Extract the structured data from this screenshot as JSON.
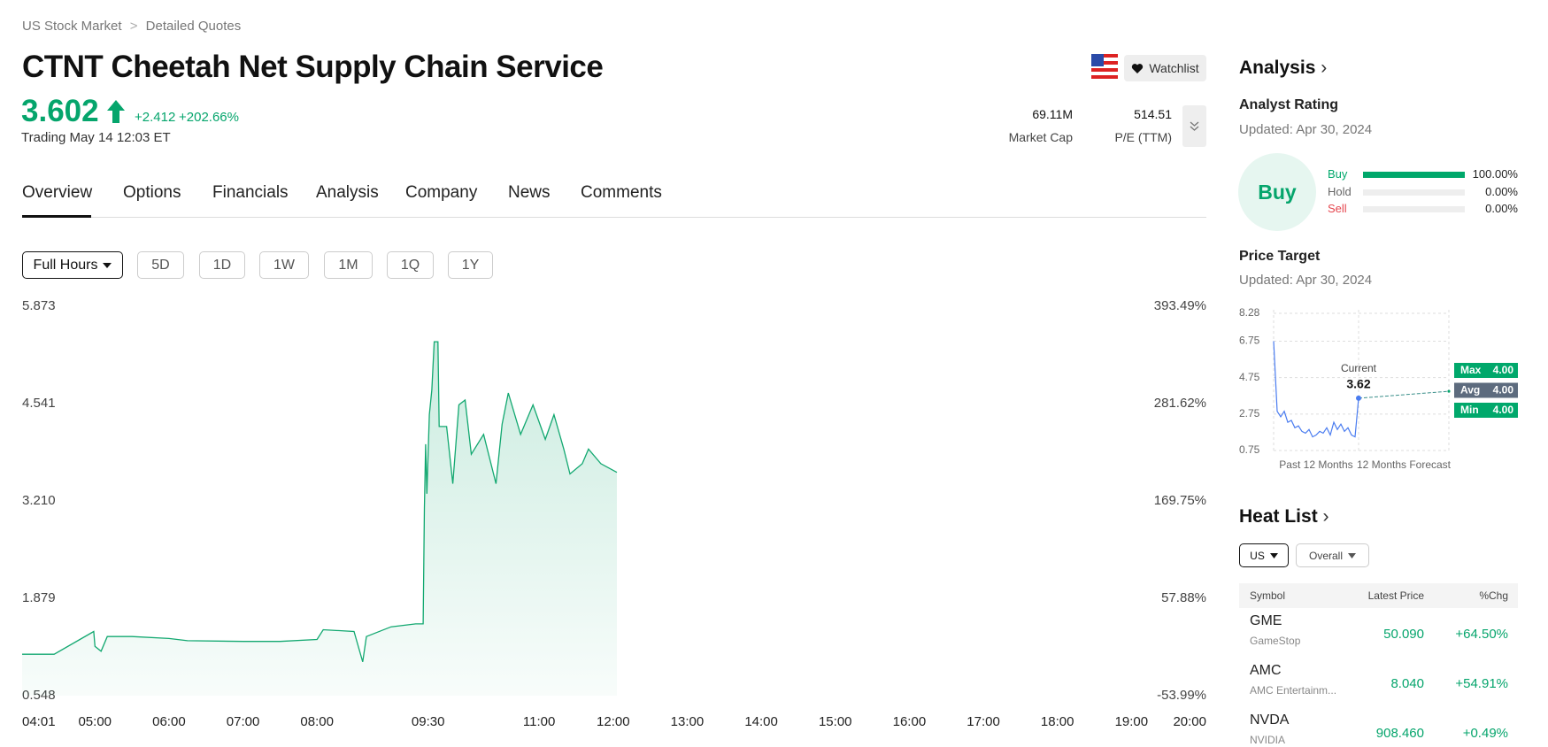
{
  "breadcrumb": [
    "US Stock Market",
    "Detailed Quotes"
  ],
  "header": {
    "title": "CTNT Cheetah Net Supply Chain Service",
    "price": "3.602",
    "change": "+2.412",
    "change_pct": "+202.66%",
    "status": "Trading May 14 12:03 ET",
    "watchlist": "Watchlist",
    "stats": [
      {
        "value": "69.11M",
        "label": "Market Cap"
      },
      {
        "value": "514.51",
        "label": "P/E (TTM)"
      }
    ]
  },
  "tabs": [
    "Overview",
    "Options",
    "Financials",
    "Analysis",
    "Company",
    "News",
    "Comments"
  ],
  "range_selector": {
    "session": "Full Hours",
    "ranges": [
      "5D",
      "1D",
      "1W",
      "1M",
      "1Q",
      "1Y"
    ]
  },
  "analysis": {
    "title": "Analysis",
    "rating_title": "Analyst Rating",
    "rating_updated": "Updated: Apr 30, 2024",
    "rating": "Buy",
    "target_title": "Price Target",
    "target_updated": "Updated: Apr 30, 2024"
  },
  "heat_list": {
    "title": "Heat List",
    "filters": [
      "US",
      "Overall"
    ],
    "columns": [
      "Symbol",
      "Latest Price",
      "%Chg"
    ],
    "rows": [
      {
        "symbol": "GME",
        "name": "GameStop",
        "price": "50.090",
        "change": "+64.50%"
      },
      {
        "symbol": "AMC",
        "name": "AMC Entertainm...",
        "price": "8.040",
        "change": "+54.91%"
      },
      {
        "symbol": "NVDA",
        "name": "NVIDIA",
        "price": "908.460",
        "change": "+0.49%"
      }
    ]
  },
  "chart_data": [
    {
      "type": "line",
      "x": [
        "04:01",
        "04:27",
        "04:59",
        "05:00",
        "05:05",
        "05:10",
        "05:30",
        "06:00",
        "06:15",
        "07:00",
        "07:30",
        "08:00",
        "08:05",
        "08:30",
        "08:37",
        "08:40",
        "09:00",
        "09:20",
        "09:26",
        "09:27",
        "09:28",
        "09:29",
        "09:31",
        "09:33",
        "09:35",
        "09:38",
        "09:39",
        "09:45",
        "09:50",
        "09:55",
        "10:00",
        "10:05",
        "10:15",
        "10:25",
        "10:30",
        "10:35",
        "10:45",
        "10:55",
        "11:05",
        "11:12",
        "11:20",
        "11:25",
        "11:35",
        "11:40",
        "11:50",
        "12:03"
      ],
      "series": [
        {
          "color": "#12a870",
          "values": [
            1.114,
            1.114,
            1.425,
            1.222,
            1.155,
            1.357,
            1.357,
            1.33,
            1.3,
            1.29,
            1.29,
            1.317,
            1.45,
            1.425,
            1.01,
            1.357,
            1.49,
            1.53,
            1.53,
            3.11,
            3.986,
            3.31,
            4.39,
            4.73,
            5.388,
            5.388,
            4.228,
            4.228,
            3.447,
            4.525,
            4.59,
            3.85,
            4.12,
            3.447,
            4.26,
            4.687,
            4.12,
            4.525,
            4.053,
            4.39,
            3.92,
            3.58,
            3.72,
            3.92,
            3.72,
            3.602
          ]
        }
      ],
      "xlim": [
        "04:01",
        "20:00"
      ],
      "xticks": [
        "04:01",
        "05:00",
        "06:00",
        "07:00",
        "08:00",
        "09:30",
        "11:00",
        "12:00",
        "13:00",
        "14:00",
        "15:00",
        "16:00",
        "17:00",
        "18:00",
        "19:00",
        "20:00"
      ],
      "ylim": [
        0.548,
        5.873
      ],
      "yticks": [
        5.873,
        4.541,
        {
          "value": 3.21,
          "label": "3.210"
        },
        1.879,
        0.548
      ],
      "y2lim": [
        -53.99,
        393.49
      ],
      "y2ticks": [
        {
          "value": 393.49,
          "label": "393.49%"
        },
        {
          "value": 281.62,
          "label": "281.62%"
        },
        {
          "value": 169.75,
          "label": "169.75%"
        },
        {
          "value": 57.88,
          "label": "57.88%"
        },
        {
          "value": -53.99,
          "label": "-53.99%"
        }
      ]
    },
    {
      "type": "bar",
      "categories": [
        "Buy",
        "Hold",
        "Sell"
      ],
      "colors": [
        "#00a86b",
        "#666666",
        "#e5474f"
      ],
      "values": [
        100,
        0,
        0
      ],
      "value_labels": [
        "100.00%",
        "0.00%",
        "0.00%"
      ],
      "xlim": [
        0,
        100
      ]
    },
    {
      "type": "line",
      "color": "#4a7cf0",
      "values": [
        6.75,
        2.9,
        2.6,
        2.9,
        2.3,
        2.4,
        2.0,
        2.1,
        1.8,
        1.7,
        1.9,
        1.5,
        1.6,
        1.8,
        1.7,
        2.0,
        1.6,
        2.3,
        1.9,
        2.2,
        1.8,
        2.0,
        1.6,
        1.5,
        3.62
      ],
      "ylim": [
        0.75,
        8.28
      ],
      "yticks": [
        8.28,
        6.75,
        4.75,
        2.75,
        0.75
      ],
      "grid": true,
      "x_labels": [
        "Past 12 Months",
        "12 Months Forecast"
      ],
      "current": {
        "label": "Current",
        "value": 3.62
      },
      "targets": [
        {
          "label": "Max",
          "value": 4.0,
          "value_label": "4.00",
          "color": "#00a86b"
        },
        {
          "label": "Avg",
          "value": 4.0,
          "value_label": "4.00",
          "color": "#5d6b7e"
        },
        {
          "label": "Min",
          "value": 4.0,
          "value_label": "4.00",
          "color": "#00a86b"
        }
      ]
    }
  ]
}
